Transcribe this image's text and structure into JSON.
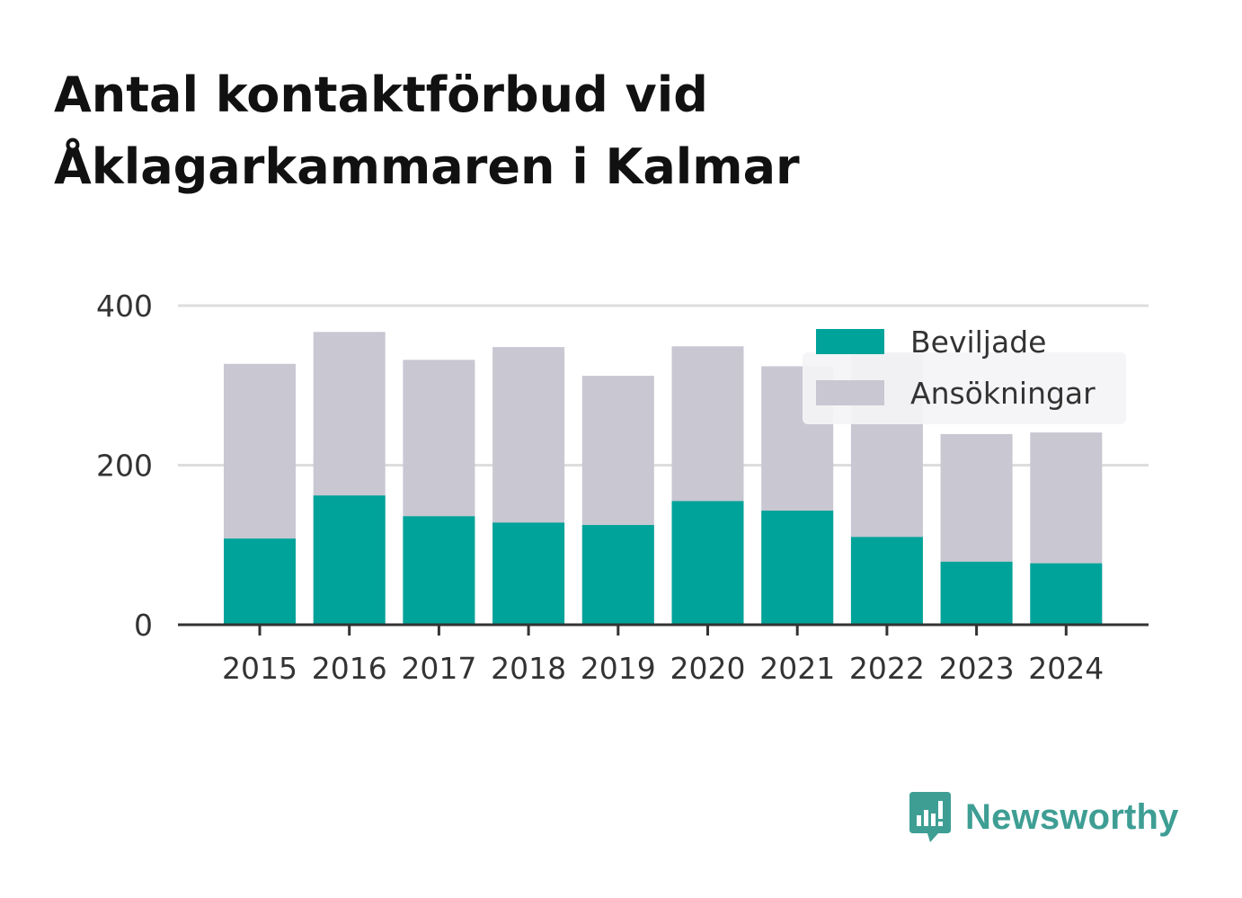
{
  "chart_data": {
    "type": "bar",
    "stacked": false,
    "overlapping": true,
    "title_lines": [
      "Antal kontaktförbud vid",
      "Åklagarkammaren i Kalmar"
    ],
    "categories": [
      "2015",
      "2016",
      "2017",
      "2018",
      "2019",
      "2020",
      "2021",
      "2022",
      "2023",
      "2024"
    ],
    "series": [
      {
        "name": "Ansökningar",
        "color": "#c8c7d2",
        "values": [
          327,
          367,
          332,
          348,
          312,
          349,
          324,
          341,
          239,
          241
        ]
      },
      {
        "name": "Beviljade",
        "color": "#00a39a",
        "values": [
          108,
          162,
          136,
          128,
          125,
          155,
          143,
          110,
          79,
          77
        ]
      }
    ],
    "legend": {
      "position": "top-right",
      "items": [
        "Beviljade",
        "Ansökningar"
      ]
    },
    "ylim": [
      0,
      400
    ],
    "yticks": [
      "0",
      "200",
      "400"
    ],
    "grid": true,
    "xlabel": "",
    "ylabel": ""
  },
  "brand": {
    "name": "Newsworthy",
    "icon": "newsworthy-logo-icon",
    "color": "#3e9e94"
  }
}
